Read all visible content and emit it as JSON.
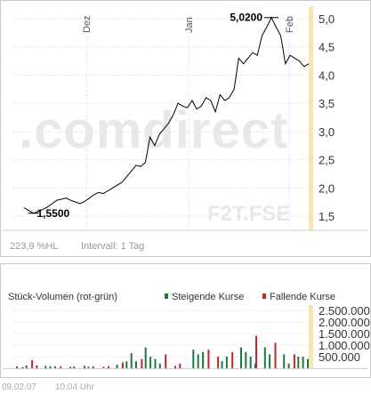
{
  "price_chart": {
    "watermark_brand": ".comdirect",
    "watermark_symbol": "F2T.FSE",
    "performance_label": "223,9 %HL",
    "interval_label": "Intervall: 1 Tag",
    "high_label": "5,0200",
    "low_label": "1,5500",
    "colors": {
      "line": "#000000",
      "grid": "#d4d4d4",
      "highlight": "#fbe6a8",
      "watermark": "#e8e8e8"
    }
  },
  "volume_chart": {
    "title": "Stück-Volumen (rot-grün)",
    "legend": [
      {
        "label": "Steigende Kurse",
        "color": "#1e7a3c"
      },
      {
        "label": "Fallende Kurse",
        "color": "#c0262b"
      }
    ]
  },
  "footer": {
    "date": "09.02.07",
    "time": "10:04 Uhr"
  },
  "chart_data": [
    {
      "type": "line",
      "title": "",
      "xlabel": "",
      "ylabel": "",
      "x_ticks": [
        "Dez",
        "Jan",
        "Feb"
      ],
      "y_ticks": [
        "1,5",
        "2,0",
        "2,5",
        "3,0",
        "3,5",
        "4,0",
        "4,5",
        "5,0"
      ],
      "ylim": [
        1.3,
        5.2
      ],
      "grid": true,
      "annotations": [
        {
          "label": "5,0200",
          "value": 5.02
        },
        {
          "label": "1,5500",
          "value": 1.55
        }
      ],
      "series": [
        {
          "values": [
            1.65,
            1.6,
            1.55,
            1.58,
            1.62,
            1.66,
            1.72,
            1.78,
            1.8,
            1.82,
            1.78,
            1.75,
            1.72,
            1.76,
            1.82,
            1.88,
            1.92,
            1.9,
            1.95,
            2.0,
            2.05,
            2.1,
            2.2,
            2.3,
            2.4,
            2.38,
            2.45,
            2.9,
            2.75,
            2.95,
            3.05,
            3.15,
            3.3,
            3.5,
            3.45,
            3.42,
            3.55,
            3.4,
            3.45,
            3.6,
            3.55,
            3.35,
            3.65,
            3.55,
            3.6,
            3.75,
            4.3,
            4.2,
            4.3,
            4.4,
            4.35,
            4.7,
            4.85,
            5.02,
            4.85,
            4.7,
            4.2,
            4.35,
            4.3,
            4.25,
            4.15,
            4.2
          ]
        }
      ]
    },
    {
      "type": "bar",
      "title": "Stück-Volumen (rot-grün)",
      "y_ticks": [
        "500.000",
        "1.000.000",
        "1.500.000",
        "2.000.000",
        "2.500.000"
      ],
      "ylim": [
        0,
        2600000
      ],
      "legend": [
        "Steigende Kurse",
        "Fallende Kurse"
      ],
      "series": [
        {
          "name": "Steigende Kurse",
          "values": [
            80000,
            0,
            120000,
            0,
            0,
            0,
            100000,
            90000,
            80000,
            0,
            0,
            0,
            70000,
            0,
            0,
            60000,
            80000,
            0,
            0,
            0,
            0,
            150000,
            0,
            300000,
            650000,
            300000,
            0,
            900000,
            500000,
            400000,
            200000,
            0,
            0,
            0,
            0,
            0,
            0,
            800000,
            600000,
            700000,
            0,
            0,
            0,
            300000,
            500000,
            0,
            0,
            900000,
            700000,
            500000,
            200000,
            0,
            900000,
            600000,
            0,
            0,
            600000,
            200000,
            0,
            500000,
            500000,
            400000
          ]
        },
        {
          "name": "Fallende Kurse",
          "values": [
            0,
            50000,
            0,
            350000,
            120000,
            0,
            0,
            0,
            0,
            80000,
            0,
            60000,
            0,
            0,
            100000,
            0,
            0,
            0,
            60000,
            80000,
            0,
            0,
            250000,
            0,
            0,
            0,
            400000,
            0,
            0,
            0,
            0,
            600000,
            0,
            100000,
            200000,
            0,
            0,
            0,
            0,
            0,
            800000,
            0,
            500000,
            0,
            0,
            700000,
            0,
            0,
            0,
            0,
            1400000,
            0,
            0,
            0,
            1100000,
            0,
            0,
            0,
            600000,
            0,
            0,
            0
          ]
        }
      ]
    }
  ]
}
